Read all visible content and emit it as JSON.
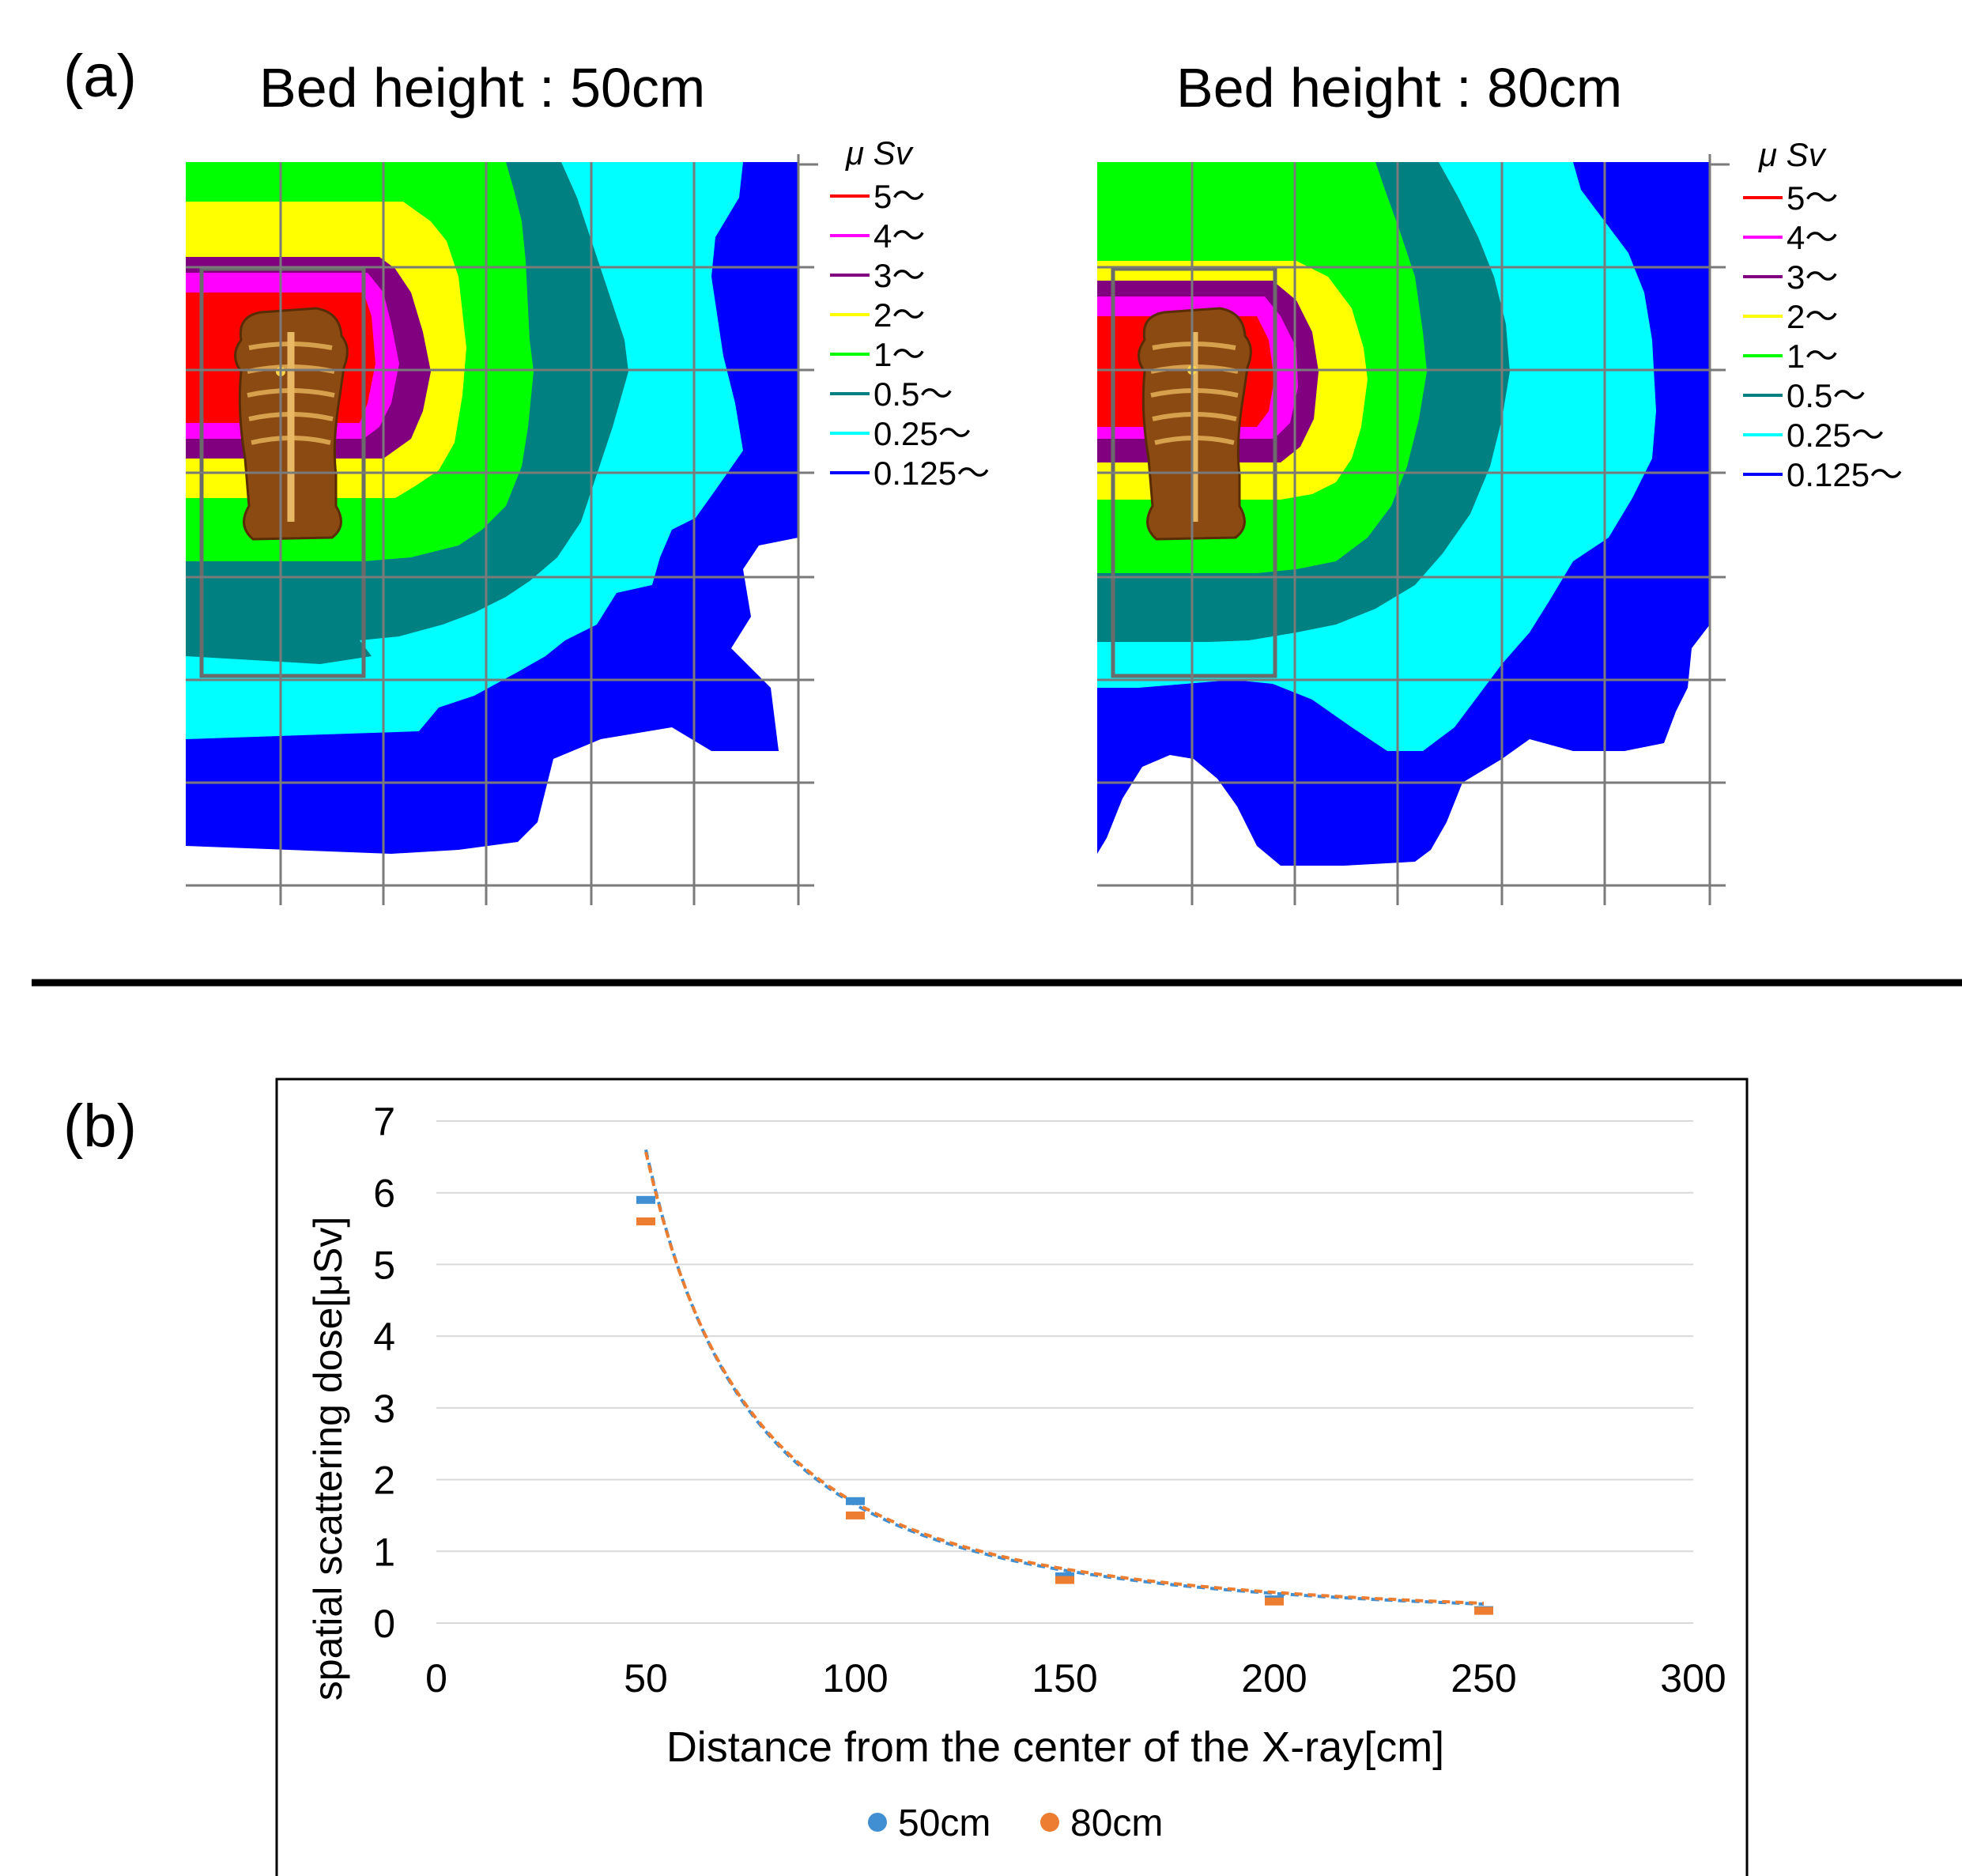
{
  "panel_a": {
    "label": "(a)",
    "unit_label": "μ Sv",
    "maps": [
      {
        "title": "Bed height : 50cm"
      },
      {
        "title": "Bed height : 80cm"
      }
    ],
    "legend": [
      {
        "label": "5～",
        "color": "#ff0000"
      },
      {
        "label": "4～",
        "color": "#ff00ff"
      },
      {
        "label": "3～",
        "color": "#800080"
      },
      {
        "label": "2～",
        "color": "#ffff00"
      },
      {
        "label": "1～",
        "color": "#00ff00"
      },
      {
        "label": "0.5～",
        "color": "#008080"
      },
      {
        "label": "0.25～",
        "color": "#00ffff"
      },
      {
        "label": "0.125～",
        "color": "#0000ff"
      }
    ],
    "icons": [
      "torso-xray-icon"
    ]
  },
  "panel_b": {
    "label": "(b)"
  },
  "chart_data": {
    "type": "scatter",
    "title": "",
    "xlabel": "Distance from the center of the X-ray[cm]",
    "ylabel": "spatial scattering dose[μSv]",
    "xlim": [
      0,
      300
    ],
    "ylim": [
      0,
      7
    ],
    "xticks": [
      "0",
      "50",
      "100",
      "150",
      "200",
      "250",
      "300"
    ],
    "yticks": [
      "0",
      "1",
      "2",
      "3",
      "4",
      "5",
      "6",
      "7"
    ],
    "grid": "horizontal",
    "legend_position": "bottom",
    "series": [
      {
        "name": "50cm",
        "color": "#3f8fd2",
        "x": [
          50,
          100,
          150,
          200,
          250
        ],
        "y": [
          5.9,
          1.7,
          0.65,
          0.33,
          0.18
        ],
        "trendline": "power, y = 16500 * x^-2 (dashed)"
      },
      {
        "name": "80cm",
        "color": "#ed7d31",
        "x": [
          50,
          100,
          150,
          200,
          250
        ],
        "y": [
          5.6,
          1.5,
          0.6,
          0.3,
          0.17
        ],
        "trendline": "power, y = 14600 * x^-1.97 (dashed)"
      }
    ]
  }
}
